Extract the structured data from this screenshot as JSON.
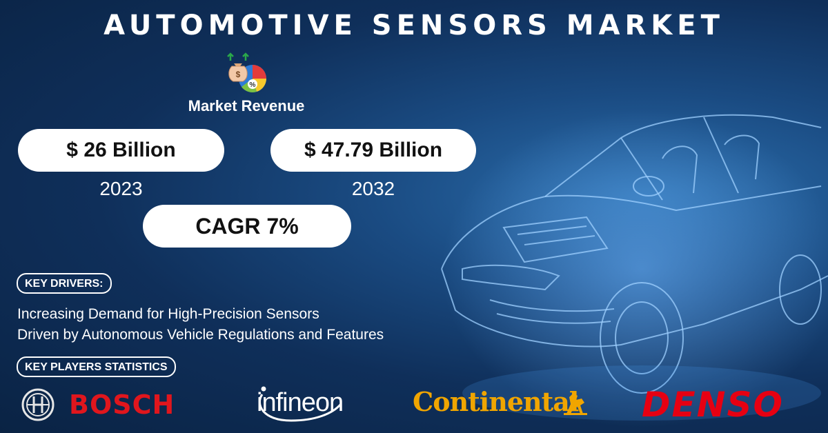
{
  "title": "AUTOMOTIVE SENSORS MARKET",
  "revenue": {
    "icon": "money-pie-chart-icon",
    "label": "Market Revenue",
    "value_2023": "$ 26 Billion",
    "year_2023": "2023",
    "value_2032": "$ 47.79 Billion",
    "year_2032": "2032",
    "cagr": "CAGR 7%"
  },
  "drivers": {
    "heading": "KEY DRIVERS:",
    "lines": [
      "Increasing Demand for High-Precision Sensors",
      "Driven by Autonomous Vehicle Regulations and Features"
    ]
  },
  "players": {
    "heading": "KEY PLAYERS STATISTICS",
    "logos": {
      "bosch": "BOSCH",
      "infineon": "infineon",
      "continental": "Continental",
      "denso": "DENSO"
    }
  },
  "colors": {
    "background": "#0d2a4e",
    "bosch": "#e0161d",
    "continental": "#f0a500",
    "denso": "#e60012"
  }
}
